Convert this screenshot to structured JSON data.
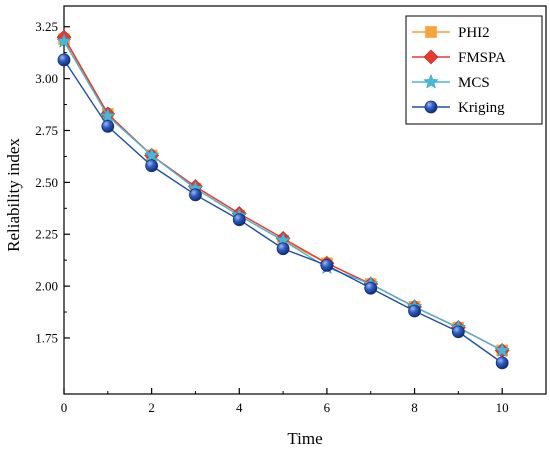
{
  "chart_data": {
    "type": "line",
    "title": "",
    "xlabel": "Time",
    "ylabel": "Reliability index",
    "xlim": [
      0,
      11
    ],
    "ylim": [
      1.48,
      3.35
    ],
    "x_ticks": [
      0,
      2,
      4,
      6,
      8,
      10
    ],
    "x_tick_labels": [
      "0",
      "2",
      "4",
      "6",
      "8",
      "10"
    ],
    "y_ticks": [
      1.75,
      2.0,
      2.25,
      2.5,
      2.75,
      3.0,
      3.25
    ],
    "y_tick_labels": [
      "1.75",
      "2.00",
      "2.25",
      "2.50",
      "2.75",
      "3.00",
      "3.25"
    ],
    "grid": false,
    "legend_position": "top-right",
    "x": [
      0,
      1,
      2,
      3,
      4,
      5,
      6,
      7,
      8,
      9,
      10
    ],
    "series": [
      {
        "name": "PHI2",
        "color": "#F7A23A",
        "marker": "square",
        "values": [
          3.19,
          2.83,
          2.63,
          2.47,
          2.34,
          2.22,
          2.11,
          2.01,
          1.9,
          1.8,
          1.69
        ]
      },
      {
        "name": "FMSPA",
        "color": "#E8382F",
        "marker": "diamond",
        "values": [
          3.2,
          2.83,
          2.63,
          2.48,
          2.35,
          2.23,
          2.11,
          2.01,
          1.9,
          1.8,
          1.69
        ]
      },
      {
        "name": "MCS",
        "color": "#48B7D8",
        "marker": "star",
        "values": [
          3.18,
          2.82,
          2.63,
          2.47,
          2.34,
          2.22,
          2.09,
          2.01,
          1.9,
          1.8,
          1.69
        ]
      },
      {
        "name": "Kriging",
        "color": "#1F4EA8",
        "marker": "circle",
        "values": [
          3.09,
          2.77,
          2.58,
          2.44,
          2.32,
          2.18,
          2.1,
          1.99,
          1.88,
          1.78,
          1.63
        ]
      }
    ]
  }
}
